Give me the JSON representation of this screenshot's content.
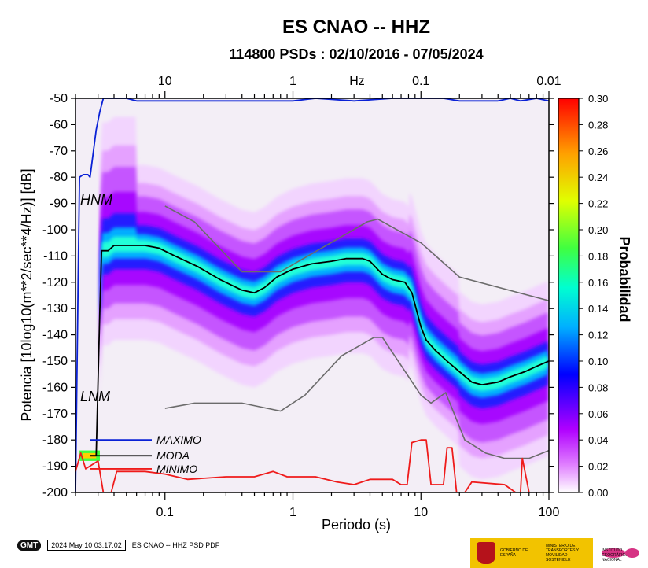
{
  "chart_data": {
    "type": "heatmap",
    "title": "ES CNAO -- HHZ",
    "subtitle": "114800 PSDs : 02/10/2016 - 07/05/2024",
    "xlabel": "Periodo (s)",
    "ylabel": "Potencia [10log10(m**2/sec**4/Hz)] [dB]",
    "xscale": "log",
    "xlim": [
      0.02,
      100
    ],
    "ylim": [
      -200,
      -50
    ],
    "x_ticks": [
      {
        "value": 0.1,
        "label": "0.1"
      },
      {
        "value": 1,
        "label": "1"
      },
      {
        "value": 10,
        "label": "10"
      },
      {
        "value": 100,
        "label": "100"
      }
    ],
    "y_ticks": [
      -50,
      -60,
      -70,
      -80,
      -90,
      -100,
      -110,
      -120,
      -130,
      -140,
      -150,
      -160,
      -170,
      -180,
      -190,
      -200
    ],
    "top_axis_label": "Hz",
    "top_ticks": [
      {
        "period": 0.1,
        "label": "10"
      },
      {
        "period": 1,
        "label": "1"
      },
      {
        "period": 10,
        "label": "0.1"
      },
      {
        "period": 100,
        "label": "0.01"
      }
    ],
    "colorbar": {
      "label": "Probabilidad",
      "range": [
        0.0,
        0.3
      ],
      "ticks": [
        "0.00",
        "0.02",
        "0.04",
        "0.06",
        "0.08",
        "0.10",
        "0.12",
        "0.14",
        "0.16",
        "0.18",
        "0.20",
        "0.22",
        "0.24",
        "0.26",
        "0.28",
        "0.30"
      ]
    },
    "noise_models": {
      "hnm_label": "HNM",
      "lnm_label": "LNM",
      "hnm": [
        [
          0.1,
          -91
        ],
        [
          0.17,
          -97
        ],
        [
          0.4,
          -116
        ],
        [
          0.8,
          -116
        ],
        [
          3.8,
          -97
        ],
        [
          4.6,
          -96
        ],
        [
          10,
          -105
        ],
        [
          20,
          -118
        ],
        [
          100,
          -127
        ]
      ],
      "lnm": [
        [
          0.1,
          -168
        ],
        [
          0.17,
          -166
        ],
        [
          0.4,
          -166
        ],
        [
          0.8,
          -169
        ],
        [
          1.24,
          -163
        ],
        [
          2.4,
          -148
        ],
        [
          4.3,
          -141
        ],
        [
          5,
          -141
        ],
        [
          10,
          -163
        ],
        [
          12,
          -166
        ],
        [
          15.6,
          -162
        ],
        [
          22,
          -180
        ],
        [
          32,
          -185
        ],
        [
          45,
          -187
        ],
        [
          70,
          -187
        ],
        [
          100,
          -184
        ]
      ]
    },
    "series": [
      {
        "name": "MAXIMO",
        "color": "#0a21d6",
        "points": [
          [
            0.02,
            -200
          ],
          [
            0.021,
            -118
          ],
          [
            0.0215,
            -80
          ],
          [
            0.023,
            -79
          ],
          [
            0.025,
            -79
          ],
          [
            0.026,
            -80
          ],
          [
            0.029,
            -62
          ],
          [
            0.031,
            -55
          ],
          [
            0.033,
            -50
          ],
          [
            0.05,
            -50
          ],
          [
            0.06,
            -51
          ],
          [
            0.2,
            -51
          ],
          [
            0.5,
            -51
          ],
          [
            1,
            -51
          ],
          [
            1.5,
            -50
          ],
          [
            3,
            -51
          ],
          [
            6,
            -50
          ],
          [
            10,
            -50
          ],
          [
            15,
            -50
          ],
          [
            20,
            -51
          ],
          [
            40,
            -51
          ],
          [
            50,
            -50
          ],
          [
            60,
            -51
          ],
          [
            80,
            -50
          ],
          [
            100,
            -51
          ]
        ]
      },
      {
        "name": "MODA",
        "color": "#000000",
        "points": [
          [
            0.026,
            -186
          ],
          [
            0.029,
            -186
          ],
          [
            0.031,
            -130
          ],
          [
            0.032,
            -108
          ],
          [
            0.036,
            -108
          ],
          [
            0.04,
            -106
          ],
          [
            0.05,
            -106
          ],
          [
            0.07,
            -106
          ],
          [
            0.09,
            -107
          ],
          [
            0.12,
            -110
          ],
          [
            0.18,
            -114
          ],
          [
            0.27,
            -119
          ],
          [
            0.4,
            -123
          ],
          [
            0.5,
            -124
          ],
          [
            0.6,
            -122
          ],
          [
            0.75,
            -118
          ],
          [
            1,
            -115
          ],
          [
            1.4,
            -113
          ],
          [
            2,
            -112
          ],
          [
            2.6,
            -111
          ],
          [
            3.5,
            -111
          ],
          [
            4,
            -112
          ],
          [
            5,
            -117
          ],
          [
            6,
            -119
          ],
          [
            7.5,
            -120
          ],
          [
            8.5,
            -124
          ],
          [
            10,
            -137
          ],
          [
            11,
            -142
          ],
          [
            13,
            -146
          ],
          [
            16,
            -150
          ],
          [
            20,
            -154
          ],
          [
            25,
            -158
          ],
          [
            30,
            -159
          ],
          [
            40,
            -158
          ],
          [
            50,
            -156
          ],
          [
            65,
            -154
          ],
          [
            80,
            -152
          ],
          [
            100,
            -150
          ]
        ]
      },
      {
        "name": "MINIMO",
        "color": "#ef1b1b",
        "points": [
          [
            0.02,
            -192
          ],
          [
            0.022,
            -185
          ],
          [
            0.024,
            -191
          ],
          [
            0.03,
            -188
          ],
          [
            0.033,
            -200
          ],
          [
            0.038,
            -200
          ],
          [
            0.042,
            -192
          ],
          [
            0.07,
            -192
          ],
          [
            0.1,
            -193
          ],
          [
            0.15,
            -195
          ],
          [
            0.3,
            -194
          ],
          [
            0.5,
            -194
          ],
          [
            0.7,
            -192
          ],
          [
            0.9,
            -194
          ],
          [
            1.5,
            -194
          ],
          [
            2.2,
            -196
          ],
          [
            3,
            -197
          ],
          [
            4,
            -195
          ],
          [
            6,
            -195
          ],
          [
            7,
            -197
          ],
          [
            7.8,
            -197
          ],
          [
            8.5,
            -181
          ],
          [
            10,
            -180
          ],
          [
            11,
            -180
          ],
          [
            12,
            -197
          ],
          [
            15,
            -197
          ],
          [
            16,
            -183
          ],
          [
            17.5,
            -183
          ],
          [
            19,
            -200
          ],
          [
            22,
            -200
          ],
          [
            25,
            -196
          ],
          [
            45,
            -197
          ],
          [
            55,
            -200
          ],
          [
            60,
            -200
          ],
          [
            62,
            -187
          ],
          [
            70,
            -200
          ],
          [
            100,
            -200
          ]
        ]
      }
    ],
    "legend": [
      "MAXIMO",
      "MODA",
      "MINIMO"
    ]
  },
  "footer": {
    "logo": "GMT",
    "timestamp": "2024 May 10 03:17:02",
    "caption": "ES CNAO -- HHZ PSD PDF"
  },
  "logos": {
    "gobierno": "GOBIERNO DE ESPAÑA",
    "ministerio": "MINISTERIO DE TRANSPORTES Y MOVILIDAD SOSTENIBLE",
    "instituto": "INSTITUTO GEOGRÁFICO NACIONAL"
  }
}
